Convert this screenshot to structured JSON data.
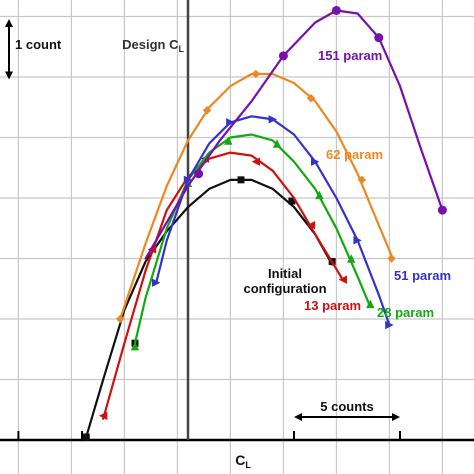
{
  "chart_data": {
    "type": "line",
    "title": "",
    "xlabel": "C",
    "xlabel_sub": "L",
    "ylabel": "",
    "x_range": [
      -9,
      12
    ],
    "y_range": [
      0,
      7
    ],
    "grid": true,
    "legend": "none (series labeled inline)",
    "reference_line": {
      "label": "Design C",
      "label_sub": "L",
      "x": 0
    },
    "scale_bars": {
      "vertical": {
        "label": "1 count",
        "value": 1
      },
      "horizontal": {
        "label": "5 counts",
        "value": 5
      }
    },
    "series": [
      {
        "name": "Initial configuration",
        "name_lines": [
          "Initial",
          "configuration"
        ],
        "color": "#111111",
        "marker": "square",
        "points": [
          [
            -4.8,
            0.05
          ],
          [
            -4.0,
            1.0
          ],
          [
            -3.0,
            2.15
          ],
          [
            -2.0,
            2.95
          ],
          [
            -1.0,
            3.45
          ],
          [
            0.0,
            3.85
          ],
          [
            1.0,
            4.15
          ],
          [
            2.0,
            4.3
          ],
          [
            3.0,
            4.3
          ],
          [
            4.0,
            4.15
          ],
          [
            5.0,
            3.85
          ],
          [
            6.0,
            3.4
          ],
          [
            6.8,
            2.9
          ]
        ],
        "markers": [
          [
            -4.8,
            0.05
          ],
          [
            -2.5,
            1.6
          ],
          [
            2.5,
            4.3
          ],
          [
            4.9,
            3.95
          ],
          [
            6.8,
            2.95
          ]
        ]
      },
      {
        "name": "13 param",
        "color": "#cc1111",
        "marker": "triangle-left",
        "points": [
          [
            -4.0,
            0.35
          ],
          [
            -3.0,
            1.6
          ],
          [
            -2.0,
            2.8
          ],
          [
            -1.0,
            3.8
          ],
          [
            0.0,
            4.35
          ],
          [
            1.0,
            4.65
          ],
          [
            2.0,
            4.75
          ],
          [
            3.0,
            4.7
          ],
          [
            4.0,
            4.45
          ],
          [
            5.0,
            4.0
          ],
          [
            6.0,
            3.4
          ],
          [
            7.3,
            2.65
          ]
        ],
        "markers": [
          [
            -4.0,
            0.4
          ],
          [
            -1.7,
            3.15
          ],
          [
            0.8,
            4.65
          ],
          [
            3.2,
            4.6
          ],
          [
            5.8,
            3.55
          ],
          [
            7.3,
            2.65
          ]
        ]
      },
      {
        "name": "28 param",
        "color": "#11aa11",
        "marker": "triangle-up",
        "points": [
          [
            -2.5,
            1.6
          ],
          [
            -2.0,
            2.35
          ],
          [
            -1.0,
            3.5
          ],
          [
            0.0,
            4.3
          ],
          [
            1.0,
            4.75
          ],
          [
            2.0,
            5.0
          ],
          [
            3.0,
            5.05
          ],
          [
            4.0,
            4.95
          ],
          [
            5.0,
            4.6
          ],
          [
            6.0,
            4.15
          ],
          [
            7.0,
            3.5
          ],
          [
            8.0,
            2.7
          ],
          [
            8.6,
            2.2
          ]
        ],
        "markers": [
          [
            -2.5,
            1.55
          ],
          [
            0.0,
            4.25
          ],
          [
            1.9,
            4.95
          ],
          [
            4.2,
            4.9
          ],
          [
            6.2,
            4.05
          ],
          [
            7.7,
            3.0
          ],
          [
            8.6,
            2.25
          ]
        ]
      },
      {
        "name": "51 param",
        "color": "#3333cc",
        "marker": "triangle-right",
        "points": [
          [
            -1.5,
            2.6
          ],
          [
            -1.0,
            3.3
          ],
          [
            0.0,
            4.3
          ],
          [
            1.0,
            4.9
          ],
          [
            2.0,
            5.25
          ],
          [
            3.0,
            5.35
          ],
          [
            4.0,
            5.3
          ],
          [
            5.0,
            5.05
          ],
          [
            6.0,
            4.6
          ],
          [
            7.0,
            4.0
          ],
          [
            8.0,
            3.3
          ],
          [
            9.0,
            2.4
          ],
          [
            9.5,
            1.9
          ]
        ],
        "markers": [
          [
            -1.5,
            2.6
          ],
          [
            0.0,
            4.3
          ],
          [
            2.0,
            5.25
          ],
          [
            4.0,
            5.3
          ],
          [
            6.0,
            4.6
          ],
          [
            8.0,
            3.3
          ],
          [
            9.5,
            1.9
          ]
        ]
      },
      {
        "name": "62 param",
        "color": "#ee8822",
        "marker": "diamond",
        "points": [
          [
            -3.2,
            2.0
          ],
          [
            -2.0,
            3.25
          ],
          [
            -1.0,
            4.2
          ],
          [
            0.0,
            4.95
          ],
          [
            1.0,
            5.5
          ],
          [
            2.0,
            5.85
          ],
          [
            3.0,
            6.05
          ],
          [
            4.0,
            6.05
          ],
          [
            5.0,
            5.9
          ],
          [
            6.0,
            5.6
          ],
          [
            7.0,
            5.1
          ],
          [
            8.0,
            4.4
          ],
          [
            9.0,
            3.55
          ],
          [
            9.6,
            3.05
          ]
        ],
        "markers": [
          [
            -3.2,
            2.0
          ],
          [
            0.9,
            5.45
          ],
          [
            3.2,
            6.05
          ],
          [
            5.8,
            5.65
          ],
          [
            8.2,
            4.3
          ],
          [
            9.6,
            3.0
          ]
        ]
      },
      {
        "name": "151 param",
        "color": "#7711aa",
        "marker": "circle",
        "points": [
          [
            -2.0,
            3.0
          ],
          [
            0.0,
            4.2
          ],
          [
            1.5,
            4.95
          ],
          [
            3.0,
            5.6
          ],
          [
            4.5,
            6.35
          ],
          [
            6.0,
            6.9
          ],
          [
            7.0,
            7.1
          ],
          [
            8.0,
            7.05
          ],
          [
            9.0,
            6.65
          ],
          [
            10.0,
            5.85
          ],
          [
            11.0,
            4.8
          ],
          [
            12.0,
            3.8
          ]
        ],
        "markers": [
          [
            0.5,
            4.4
          ],
          [
            4.5,
            6.35
          ],
          [
            7.0,
            7.1
          ],
          [
            9.0,
            6.65
          ],
          [
            12.0,
            3.8
          ]
        ]
      }
    ]
  }
}
